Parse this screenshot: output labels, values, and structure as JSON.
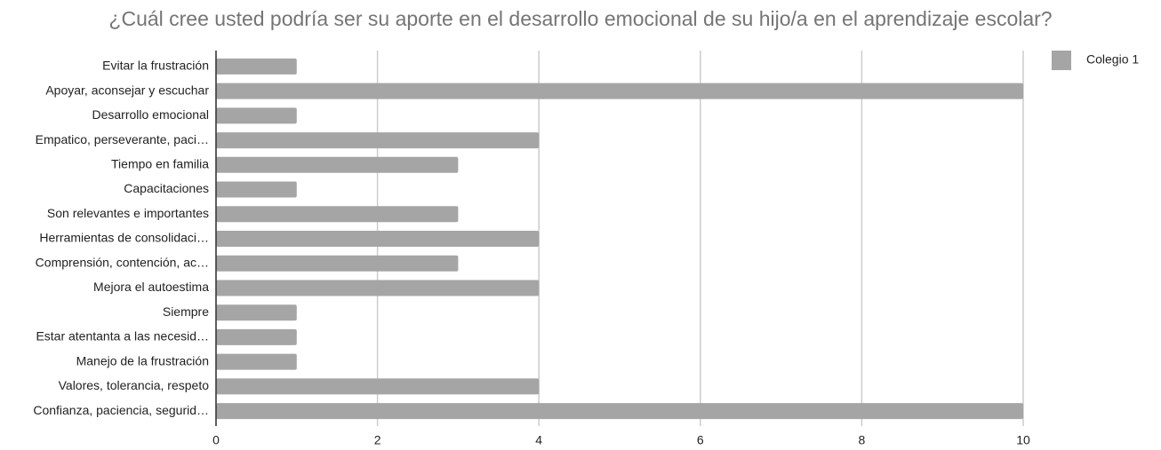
{
  "chart_data": {
    "type": "bar",
    "orientation": "horizontal",
    "title": "¿Cuál cree usted podría ser su aporte en el desarrollo emocional de su hijo/a en el aprendizaje escolar?",
    "categories": [
      "Evitar la frustración",
      "Apoyar, aconsejar y escuchar",
      "Desarrollo emocional",
      "Empatico, perseverante, paci…",
      "Tiempo en familia",
      "Capacitaciones",
      "Son relevantes e importantes",
      "Herramientas de consolidaci…",
      "Comprensión, contención, ac…",
      "Mejora el autoestima",
      "Siempre",
      "Estar atentanta a las necesid…",
      "Manejo de la frustración",
      "Valores, tolerancia, respeto",
      "Confianza, paciencia, segurid…"
    ],
    "series": [
      {
        "name": "Colegio 1",
        "color": "#a5a5a5",
        "values": [
          1,
          10,
          1,
          4,
          3,
          1,
          3,
          4,
          3,
          4,
          1,
          1,
          1,
          4,
          10
        ]
      }
    ],
    "xlim": [
      0,
      10
    ],
    "xticks": [
      0,
      2,
      4,
      6,
      8,
      10
    ],
    "grid": true,
    "legend": "top-right"
  }
}
